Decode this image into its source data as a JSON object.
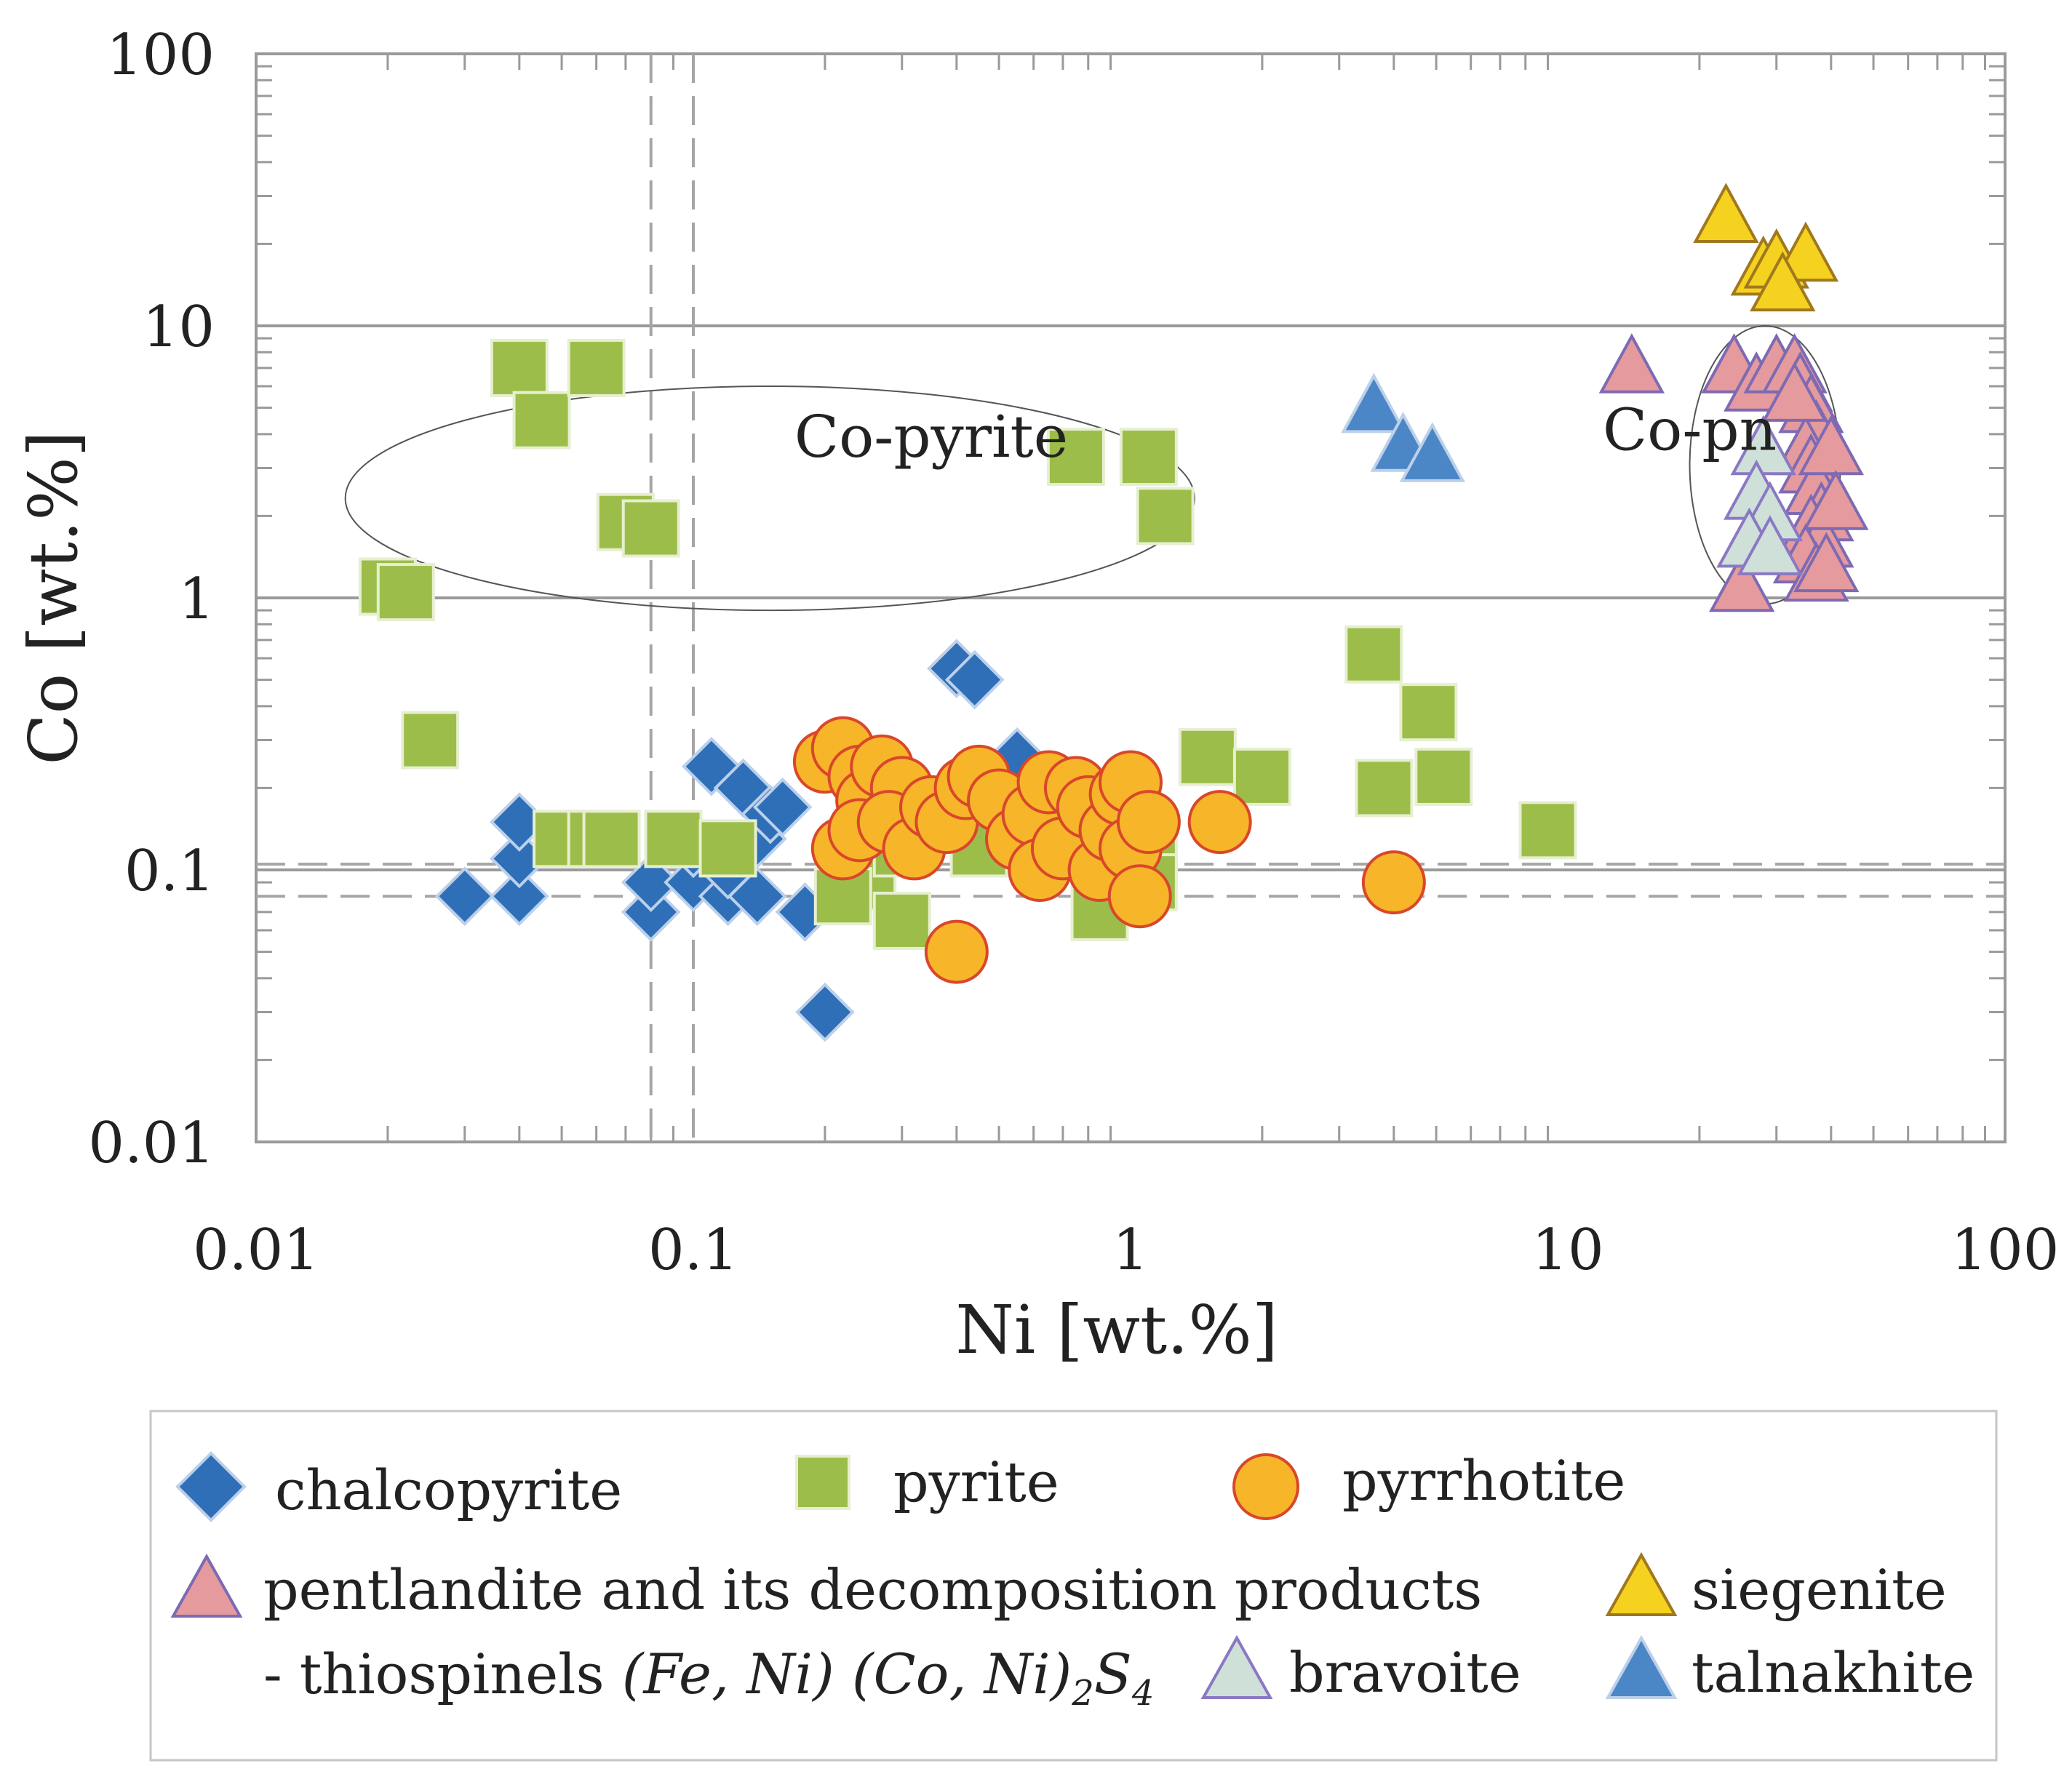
{
  "chart_data": {
    "type": "scatter",
    "title": "",
    "xlabel": "Ni [wt.%]",
    "ylabel": "Co [wt.%]",
    "xscale": "log",
    "yscale": "log",
    "xlim": [
      0.01,
      100
    ],
    "ylim": [
      0.01,
      100
    ],
    "x_ticks": [
      {
        "v": 0.01,
        "label": "0.01"
      },
      {
        "v": 0.1,
        "label": "0.1"
      },
      {
        "v": 1,
        "label": "1"
      },
      {
        "v": 10,
        "label": "10"
      },
      {
        "v": 100,
        "label": "100"
      }
    ],
    "y_ticks": [
      {
        "v": 0.01,
        "label": "0.01"
      },
      {
        "v": 0.1,
        "label": "0.1"
      },
      {
        "v": 1,
        "label": "1"
      },
      {
        "v": 10,
        "label": "10"
      },
      {
        "v": 100,
        "label": "100"
      }
    ],
    "horizontal_gridlines": [
      0.1,
      1,
      10
    ],
    "dashed_reference_lines": {
      "x": [
        0.08,
        0.1
      ],
      "y": [
        0.08,
        0.105
      ]
    },
    "annotations": [
      {
        "text": "Co-pyrite",
        "x": 0.35,
        "y": 3.3
      },
      {
        "text": "Co-pn",
        "x": 19,
        "y": 3.5
      }
    ],
    "regions": [
      {
        "name": "co-pyrite",
        "shape": "ellipse",
        "x_range": [
          0.016,
          1.4
        ],
        "y_range": [
          0.9,
          6
        ]
      },
      {
        "name": "co-pn",
        "shape": "ellipse",
        "x_range": [
          19,
          42
        ],
        "y_range": [
          0.95,
          10
        ]
      }
    ],
    "series": [
      {
        "name": "chalcopyrite",
        "marker": "diamond",
        "color": "#2e6fb8",
        "edge": "#bcd0ea",
        "points": [
          [
            0.03,
            0.08
          ],
          [
            0.04,
            0.08
          ],
          [
            0.04,
            0.11
          ],
          [
            0.04,
            0.15
          ],
          [
            0.08,
            0.07
          ],
          [
            0.08,
            0.09
          ],
          [
            0.1,
            0.09
          ],
          [
            0.1,
            0.12
          ],
          [
            0.11,
            0.24
          ],
          [
            0.12,
            0.08
          ],
          [
            0.12,
            0.1
          ],
          [
            0.13,
            0.2
          ],
          [
            0.14,
            0.08
          ],
          [
            0.14,
            0.13
          ],
          [
            0.15,
            0.16
          ],
          [
            0.16,
            0.17
          ],
          [
            0.18,
            0.07
          ],
          [
            0.2,
            0.03
          ],
          [
            0.24,
            0.2
          ],
          [
            0.25,
            0.17
          ],
          [
            0.32,
            0.14
          ],
          [
            0.4,
            0.55
          ],
          [
            0.44,
            0.5
          ],
          [
            0.42,
            0.16
          ],
          [
            0.55,
            0.26
          ]
        ]
      },
      {
        "name": "pyrite",
        "marker": "square",
        "color": "#9dbd4a",
        "edge": "#e6efd0",
        "points": [
          [
            0.02,
            1.1
          ],
          [
            0.022,
            1.05
          ],
          [
            0.025,
            0.3
          ],
          [
            0.04,
            7
          ],
          [
            0.045,
            4.5
          ],
          [
            0.06,
            7
          ],
          [
            0.07,
            1.9
          ],
          [
            0.08,
            1.8
          ],
          [
            0.05,
            0.13
          ],
          [
            0.06,
            0.13
          ],
          [
            0.065,
            0.13
          ],
          [
            0.09,
            0.13
          ],
          [
            0.12,
            0.12
          ],
          [
            0.25,
            0.09
          ],
          [
            0.22,
            0.08
          ],
          [
            0.3,
            0.065
          ],
          [
            0.3,
            0.12
          ],
          [
            0.45,
            0.12
          ],
          [
            0.75,
            3.3
          ],
          [
            1.1,
            3.3
          ],
          [
            1.2,
            2
          ],
          [
            0.85,
            0.07
          ],
          [
            1.1,
            0.11
          ],
          [
            1.1,
            0.09
          ],
          [
            1.5,
            0.26
          ],
          [
            2,
            0.22
          ],
          [
            3.6,
            0.62
          ],
          [
            3.8,
            0.2
          ],
          [
            4.8,
            0.38
          ],
          [
            5.2,
            0.22
          ],
          [
            9,
            0.14
          ]
        ]
      },
      {
        "name": "pyrrhotite",
        "marker": "circle",
        "color": "#f7b52a",
        "edge": "#d9472b",
        "points": [
          [
            0.2,
            0.25
          ],
          [
            0.22,
            0.28
          ],
          [
            0.24,
            0.22
          ],
          [
            0.25,
            0.18
          ],
          [
            0.27,
            0.24
          ],
          [
            0.3,
            0.2
          ],
          [
            0.22,
            0.12
          ],
          [
            0.24,
            0.14
          ],
          [
            0.28,
            0.15
          ],
          [
            0.32,
            0.12
          ],
          [
            0.35,
            0.17
          ],
          [
            0.38,
            0.15
          ],
          [
            0.4,
            0.05
          ],
          [
            0.42,
            0.2
          ],
          [
            0.45,
            0.22
          ],
          [
            0.5,
            0.18
          ],
          [
            0.55,
            0.13
          ],
          [
            0.6,
            0.16
          ],
          [
            0.62,
            0.1
          ],
          [
            0.65,
            0.21
          ],
          [
            0.7,
            0.12
          ],
          [
            0.75,
            0.2
          ],
          [
            0.8,
            0.17
          ],
          [
            0.85,
            0.1
          ],
          [
            0.9,
            0.14
          ],
          [
            0.95,
            0.19
          ],
          [
            1,
            0.21
          ],
          [
            1,
            0.12
          ],
          [
            1.05,
            0.08
          ],
          [
            1.1,
            0.15
          ],
          [
            1.6,
            0.15
          ],
          [
            4,
            0.09
          ]
        ]
      },
      {
        "name": "pentlandite",
        "marker": "triangle",
        "color": "#e59a9e",
        "edge": "#7d6ab3",
        "points": [
          [
            14,
            7
          ],
          [
            24,
            7
          ],
          [
            27,
            6
          ],
          [
            30,
            7
          ],
          [
            33,
            7
          ],
          [
            34,
            6
          ],
          [
            36,
            5
          ],
          [
            37,
            4
          ],
          [
            35,
            3.5
          ],
          [
            36,
            3
          ],
          [
            37,
            2.5
          ],
          [
            38,
            2
          ],
          [
            36,
            1.8
          ],
          [
            38,
            1.6
          ],
          [
            35,
            1.4
          ],
          [
            37,
            1.2
          ],
          [
            39,
            1.3
          ],
          [
            25,
            1.1
          ],
          [
            40,
            3.5
          ],
          [
            41,
            2.2
          ],
          [
            33,
            5.5
          ]
        ]
      },
      {
        "name": "siegenite",
        "marker": "triangle",
        "color": "#f5d21f",
        "edge": "#a0781e",
        "points": [
          [
            23,
            25
          ],
          [
            28,
            16
          ],
          [
            30,
            17
          ],
          [
            35,
            18
          ],
          [
            31,
            14
          ]
        ]
      },
      {
        "name": "bravoite",
        "marker": "triangle",
        "color": "#cfe0d8",
        "edge": "#8a78c3",
        "points": [
          [
            28,
            3.5
          ],
          [
            27,
            2.4
          ],
          [
            29,
            2
          ],
          [
            26,
            1.6
          ],
          [
            29,
            1.5
          ]
        ]
      },
      {
        "name": "talnakhite",
        "marker": "triangle",
        "color": "#4b86c6",
        "edge": "#bcd0ea",
        "points": [
          [
            3.6,
            5
          ],
          [
            4.2,
            3.6
          ],
          [
            4.9,
            3.3
          ]
        ]
      }
    ]
  },
  "legend": {
    "chalcopyrite": "chalcopyrite",
    "pyrite": "pyrite",
    "pyrrhotite": "pyrrhotite",
    "pentlandite_line1": "pentlandite and its decomposition products",
    "pentlandite_line2_prefix": "- thiospinels ",
    "pentlandite_formula": "(Fe, Ni) (Co, Ni)",
    "sub_2": "2",
    "formula_s": "S",
    "sub_4": "4",
    "siegenite": "siegenite",
    "bravoite": "bravoite",
    "talnakhite": "talnakhite"
  }
}
